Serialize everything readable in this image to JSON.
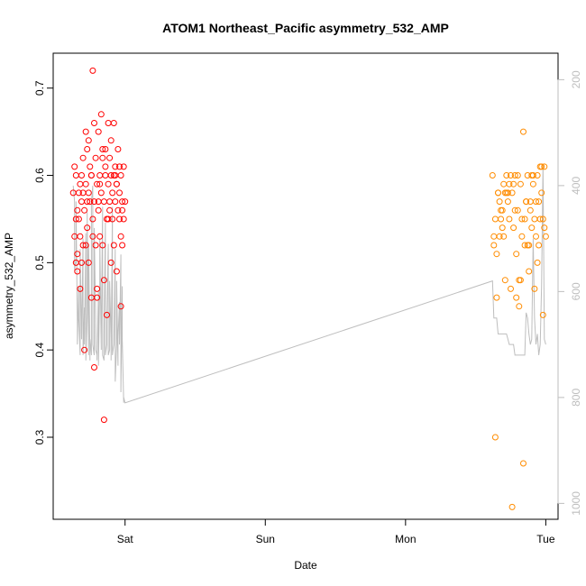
{
  "chart_data": {
    "type": "scatter",
    "title": "ATOM1 Northeast_Pacific asymmetry_532_AMP",
    "xlabel": "Date",
    "ylabel": "asymmetry_532_AMP",
    "x_ticks": [
      "Sat",
      "Sun",
      "Mon",
      "Tue"
    ],
    "x_tick_values": [
      1,
      2,
      3,
      4
    ],
    "xlim": [
      0.4875,
      4.0875
    ],
    "y_ticks": [
      "0.3",
      "0.4",
      "0.5",
      "0.6",
      "0.7"
    ],
    "ylim": [
      0.206,
      0.74
    ],
    "y2_ticks": [
      "200",
      "400",
      "600",
      "800",
      "1000"
    ],
    "y2lim": [
      150,
      1030
    ],
    "y2_reversed": true,
    "grid": false,
    "legend": "none",
    "colors": {
      "series_1": "#ff0000",
      "series_2": "#ff8c00",
      "altitude_line": "#bebebe"
    },
    "series": [
      {
        "color": "#ff0000",
        "x": [
          0.63,
          0.64,
          0.64,
          0.65,
          0.65,
          0.66,
          0.66,
          0.67,
          0.67,
          0.68,
          0.68,
          0.69,
          0.69,
          0.7,
          0.7,
          0.71,
          0.71,
          0.72,
          0.72,
          0.73,
          0.73,
          0.74,
          0.74,
          0.75,
          0.75,
          0.76,
          0.76,
          0.77,
          0.77,
          0.78,
          0.78,
          0.79,
          0.79,
          0.8,
          0.8,
          0.81,
          0.81,
          0.82,
          0.82,
          0.83,
          0.83,
          0.84,
          0.84,
          0.85,
          0.85,
          0.86,
          0.86,
          0.87,
          0.87,
          0.88,
          0.88,
          0.89,
          0.89,
          0.9,
          0.9,
          0.91,
          0.91,
          0.92,
          0.92,
          0.93,
          0.93,
          0.94,
          0.94,
          0.95,
          0.95,
          0.96,
          0.96,
          0.97,
          0.97,
          0.98,
          0.98,
          0.99,
          0.99,
          1.0,
          0.66,
          0.7,
          0.74,
          0.78,
          0.82,
          0.86,
          0.9,
          0.94,
          0.98,
          0.68,
          0.72,
          0.76,
          0.8,
          0.84,
          0.88,
          0.92,
          0.96,
          0.65,
          0.69,
          0.73,
          0.77,
          0.81,
          0.85,
          0.89,
          0.93,
          0.97
        ],
        "y": [
          0.58,
          0.53,
          0.61,
          0.5,
          0.6,
          0.56,
          0.49,
          0.58,
          0.55,
          0.47,
          0.59,
          0.57,
          0.6,
          0.52,
          0.62,
          0.4,
          0.56,
          0.65,
          0.59,
          0.54,
          0.63,
          0.58,
          0.5,
          0.61,
          0.57,
          0.46,
          0.6,
          0.72,
          0.55,
          0.66,
          0.38,
          0.52,
          0.62,
          0.59,
          0.46,
          0.65,
          0.57,
          0.6,
          0.53,
          0.67,
          0.58,
          0.62,
          0.52,
          0.57,
          0.48,
          0.63,
          0.6,
          0.44,
          0.55,
          0.66,
          0.59,
          0.57,
          0.62,
          0.5,
          0.6,
          0.55,
          0.58,
          0.52,
          0.66,
          0.57,
          0.61,
          0.49,
          0.59,
          0.56,
          0.63,
          0.55,
          0.58,
          0.6,
          0.45,
          0.52,
          0.57,
          0.61,
          0.55,
          0.57,
          0.51,
          0.58,
          0.64,
          0.57,
          0.59,
          0.61,
          0.64,
          0.59,
          0.56,
          0.53,
          0.52,
          0.6,
          0.47,
          0.63,
          0.55,
          0.6,
          0.61,
          0.55,
          0.5,
          0.57,
          0.53,
          0.56,
          0.32,
          0.56,
          0.6,
          0.53
        ],
        "y2": [
          400,
          430,
          560,
          540,
          430,
          660,
          700,
          590,
          650,
          720,
          520,
          690,
          690,
          500,
          720,
          630,
          700,
          490,
          730,
          640,
          450,
          720,
          510,
          730,
          690,
          720,
          430,
          400,
          700,
          720,
          480,
          650,
          710,
          720,
          730,
          600,
          740,
          580,
          500,
          710,
          690,
          440,
          720,
          730,
          680,
          470,
          720,
          700,
          660,
          510,
          720,
          710,
          580,
          690,
          730,
          440,
          720,
          700,
          700,
          520,
          770,
          700,
          580,
          740,
          690,
          620,
          700,
          530,
          790,
          590,
          690,
          810,
          800,
          810
        ]
      },
      {
        "color": "#ff8c00",
        "x": [
          3.62,
          3.63,
          3.64,
          3.65,
          3.66,
          3.67,
          3.68,
          3.69,
          3.7,
          3.71,
          3.72,
          3.73,
          3.74,
          3.75,
          3.76,
          3.77,
          3.78,
          3.79,
          3.8,
          3.81,
          3.82,
          3.83,
          3.84,
          3.85,
          3.86,
          3.87,
          3.88,
          3.89,
          3.9,
          3.91,
          3.92,
          3.93,
          3.94,
          3.95,
          3.96,
          3.97,
          3.98,
          3.99,
          4.0,
          3.64,
          3.68,
          3.72,
          3.76,
          3.8,
          3.84,
          3.88,
          3.92,
          3.96,
          3.66,
          3.7,
          3.74,
          3.78,
          3.82,
          3.86,
          3.9,
          3.94,
          3.98,
          3.63,
          3.67,
          3.71,
          3.75,
          3.79,
          3.83,
          3.87,
          3.91,
          3.95,
          3.99,
          3.65,
          3.69,
          3.73,
          3.77,
          3.81,
          3.85,
          3.89,
          3.93,
          3.97
        ],
        "y": [
          0.6,
          0.52,
          0.55,
          0.46,
          0.58,
          0.53,
          0.56,
          0.54,
          0.59,
          0.48,
          0.6,
          0.57,
          0.55,
          0.47,
          0.58,
          0.54,
          0.6,
          0.51,
          0.56,
          0.45,
          0.59,
          0.55,
          0.65,
          0.52,
          0.57,
          0.6,
          0.49,
          0.56,
          0.54,
          0.59,
          0.47,
          0.57,
          0.6,
          0.52,
          0.55,
          0.58,
          0.44,
          0.61,
          0.53,
          0.3,
          0.55,
          0.58,
          0.22,
          0.6,
          0.27,
          0.52,
          0.55,
          0.61,
          0.58,
          0.53,
          0.59,
          0.56,
          0.48,
          0.57,
          0.6,
          0.5,
          0.55,
          0.53,
          0.57,
          0.58,
          0.6,
          0.46,
          0.53,
          0.52,
          0.6,
          0.57,
          0.54,
          0.51,
          0.56,
          0.58,
          0.59,
          0.48,
          0.55,
          0.57,
          0.53,
          0.61
        ],
        "y2": [
          580,
          650,
          650,
          650,
          680,
          680,
          680,
          680,
          680,
          680,
          680,
          690,
          700,
          700,
          700,
          700,
          720,
          720,
          720,
          720,
          720,
          720,
          720,
          720,
          640,
          650,
          680,
          700,
          690,
          500,
          650,
          700,
          680,
          720,
          700,
          590,
          360,
          690,
          700
        ]
      }
    ]
  }
}
